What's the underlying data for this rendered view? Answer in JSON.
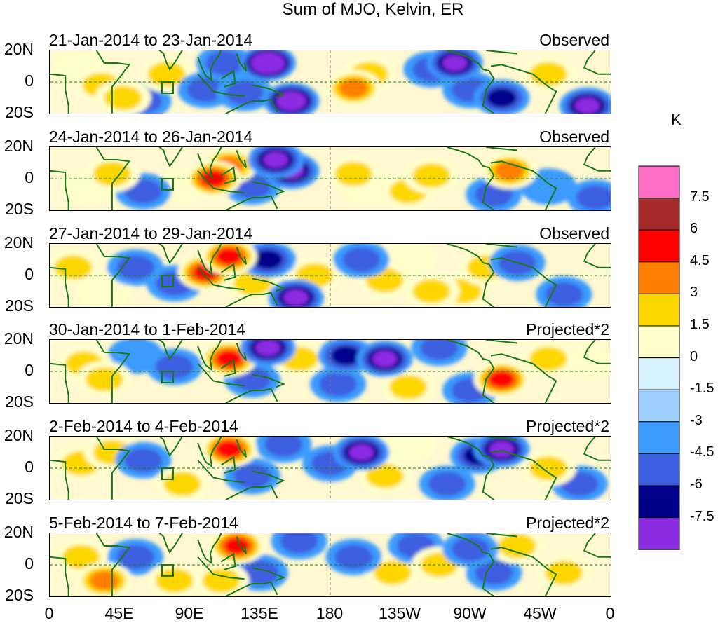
{
  "chart_data": {
    "type": "heatmap",
    "title": "Sum of MJO, Kelvin, ER",
    "colorbar": {
      "unit": "K",
      "labels": [
        "7.5",
        "6",
        "4.5",
        "3",
        "1.5",
        "0",
        "-1.5",
        "-3",
        "-4.5",
        "-6",
        "-7.5"
      ],
      "colors": [
        "#ff6ec7",
        "#a52a2a",
        "#ff0000",
        "#ff7f00",
        "#ffd700",
        "#ffffcc",
        "#d7f3ff",
        "#9fcfff",
        "#3b9bff",
        "#3c5ee0",
        "#00008b",
        "#8a2be2"
      ]
    },
    "x_ticks": [
      "0",
      "45E",
      "90E",
      "135E",
      "180",
      "135W",
      "90W",
      "45W",
      "0"
    ],
    "y_ticks": [
      "20N",
      "0",
      "20S"
    ],
    "panels": [
      {
        "date_range": "21-Jan-2014 to 23-Jan-2014",
        "status": "Observed"
      },
      {
        "date_range": "24-Jan-2014 to 26-Jan-2014",
        "status": "Observed"
      },
      {
        "date_range": "27-Jan-2014 to 29-Jan-2014",
        "status": "Observed"
      },
      {
        "date_range": "30-Jan-2014 to 1-Feb-2014",
        "status": "Projected*2"
      },
      {
        "date_range": "2-Feb-2014 to 4-Feb-2014",
        "status": "Projected*2"
      },
      {
        "date_range": "5-Feb-2014 to 7-Feb-2014",
        "status": "Projected*2"
      }
    ],
    "anomaly_blobs": [
      [
        [
          20,
          8,
          2
        ],
        [
          33,
          -2,
          3
        ],
        [
          47,
          -10,
          4
        ],
        [
          60,
          -12,
          -3
        ],
        [
          75,
          5,
          3
        ],
        [
          100,
          -5,
          -3
        ],
        [
          112,
          12,
          -4
        ],
        [
          125,
          -7,
          -3
        ],
        [
          140,
          12,
          -9
        ],
        [
          155,
          -12,
          -8
        ],
        [
          195,
          -4,
          5
        ],
        [
          205,
          5,
          4
        ],
        [
          245,
          8,
          -3
        ],
        [
          260,
          12,
          -7
        ],
        [
          270,
          -5,
          -4
        ],
        [
          290,
          -10,
          -5
        ],
        [
          320,
          5,
          3
        ],
        [
          345,
          -15,
          -6
        ]
      ],
      [
        [
          25,
          -5,
          2
        ],
        [
          40,
          3,
          4
        ],
        [
          60,
          -8,
          -3
        ],
        [
          85,
          -5,
          2
        ],
        [
          105,
          0,
          6
        ],
        [
          115,
          8,
          5
        ],
        [
          130,
          -5,
          -4
        ],
        [
          145,
          12,
          -7
        ],
        [
          155,
          5,
          -6
        ],
        [
          195,
          3,
          4
        ],
        [
          205,
          -5,
          2
        ],
        [
          230,
          -8,
          3
        ],
        [
          245,
          2,
          3
        ],
        [
          285,
          -10,
          -3
        ],
        [
          295,
          5,
          5
        ],
        [
          320,
          -5,
          -2
        ],
        [
          350,
          -12,
          -4
        ]
      ],
      [
        [
          15,
          5,
          3
        ],
        [
          35,
          -10,
          2
        ],
        [
          55,
          5,
          -4
        ],
        [
          80,
          -5,
          -3
        ],
        [
          100,
          2,
          6
        ],
        [
          115,
          12,
          7
        ],
        [
          130,
          -5,
          3
        ],
        [
          140,
          10,
          -5
        ],
        [
          158,
          -14,
          -7
        ],
        [
          170,
          0,
          3
        ],
        [
          200,
          10,
          -4
        ],
        [
          215,
          -3,
          3
        ],
        [
          230,
          10,
          2
        ],
        [
          245,
          -10,
          4
        ],
        [
          265,
          -10,
          3
        ],
        [
          280,
          5,
          3
        ],
        [
          300,
          8,
          -3
        ],
        [
          330,
          -12,
          -4
        ]
      ],
      [
        [
          22,
          5,
          3
        ],
        [
          35,
          -5,
          4
        ],
        [
          55,
          10,
          -2
        ],
        [
          80,
          3,
          -3
        ],
        [
          115,
          8,
          6
        ],
        [
          130,
          -5,
          -3
        ],
        [
          140,
          15,
          -7
        ],
        [
          160,
          8,
          3
        ],
        [
          185,
          -8,
          -3
        ],
        [
          190,
          10,
          -5
        ],
        [
          215,
          8,
          -6
        ],
        [
          230,
          -10,
          4
        ],
        [
          250,
          15,
          -4
        ],
        [
          270,
          -12,
          -4
        ],
        [
          290,
          -5,
          6
        ],
        [
          320,
          8,
          4
        ],
        [
          345,
          5,
          2
        ]
      ],
      [
        [
          20,
          3,
          3
        ],
        [
          40,
          10,
          3
        ],
        [
          60,
          5,
          -3
        ],
        [
          85,
          -10,
          3
        ],
        [
          115,
          12,
          6
        ],
        [
          130,
          -5,
          -3
        ],
        [
          150,
          15,
          -4
        ],
        [
          180,
          3,
          -3
        ],
        [
          200,
          10,
          -6
        ],
        [
          215,
          -5,
          3
        ],
        [
          230,
          15,
          2
        ],
        [
          255,
          -10,
          -4
        ],
        [
          275,
          8,
          -5
        ],
        [
          290,
          12,
          -7
        ],
        [
          320,
          0,
          4
        ],
        [
          340,
          -10,
          -3
        ]
      ],
      [
        [
          20,
          5,
          3
        ],
        [
          35,
          -10,
          5
        ],
        [
          55,
          5,
          -3
        ],
        [
          80,
          -10,
          3
        ],
        [
          110,
          -10,
          4
        ],
        [
          120,
          12,
          7
        ],
        [
          135,
          -5,
          -3
        ],
        [
          160,
          15,
          -4
        ],
        [
          195,
          5,
          -4
        ],
        [
          220,
          -5,
          3
        ],
        [
          235,
          12,
          -3
        ],
        [
          250,
          0,
          3
        ],
        [
          270,
          10,
          -4
        ],
        [
          285,
          -5,
          -3
        ],
        [
          300,
          12,
          3
        ],
        [
          330,
          -5,
          3
        ]
      ]
    ]
  }
}
